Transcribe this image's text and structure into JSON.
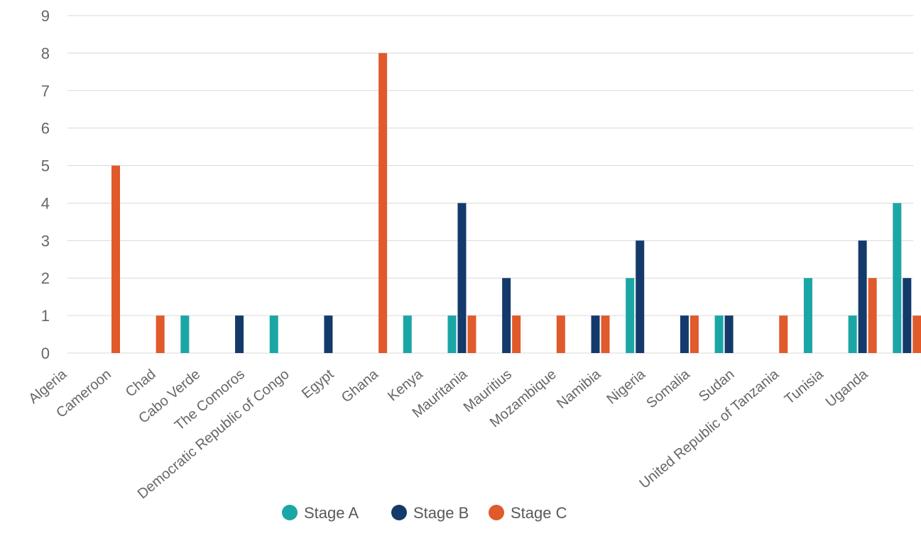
{
  "chart_data": {
    "type": "bar",
    "title": "",
    "xlabel": "",
    "ylabel": "",
    "ylim": [
      0,
      9
    ],
    "yticks": [
      0,
      1,
      2,
      3,
      4,
      5,
      6,
      7,
      8,
      9
    ],
    "grid": true,
    "legend_position": "bottom",
    "categories": [
      "Algeria",
      "Cameroon",
      "Chad",
      "Cabo Verde",
      "The Comoros",
      "Democratic Republic of Congo",
      "Egypt",
      "Ghana",
      "Kenya",
      "Mauritania",
      "Mauritius",
      "Mozambique",
      "Namibia",
      "Nigeria",
      "Somalia",
      "Sudan",
      "United Republic of Tanzania",
      "Tunisia",
      "Uganda"
    ],
    "series": [
      {
        "name": "Stage A",
        "color": "#1BA6A6",
        "values": [
          0,
          0,
          1,
          0,
          1,
          0,
          0,
          1,
          1,
          0,
          0,
          0,
          2,
          0,
          1,
          0,
          2,
          1,
          4
        ]
      },
      {
        "name": "Stage B",
        "color": "#143A6B",
        "values": [
          0,
          0,
          0,
          1,
          0,
          1,
          0,
          0,
          4,
          2,
          0,
          1,
          3,
          1,
          1,
          0,
          0,
          3,
          2
        ]
      },
      {
        "name": "Stage C",
        "color": "#E05A2B",
        "values": [
          5,
          1,
          0,
          0,
          0,
          0,
          8,
          0,
          1,
          1,
          1,
          1,
          0,
          1,
          0,
          1,
          0,
          2,
          1
        ]
      }
    ]
  }
}
